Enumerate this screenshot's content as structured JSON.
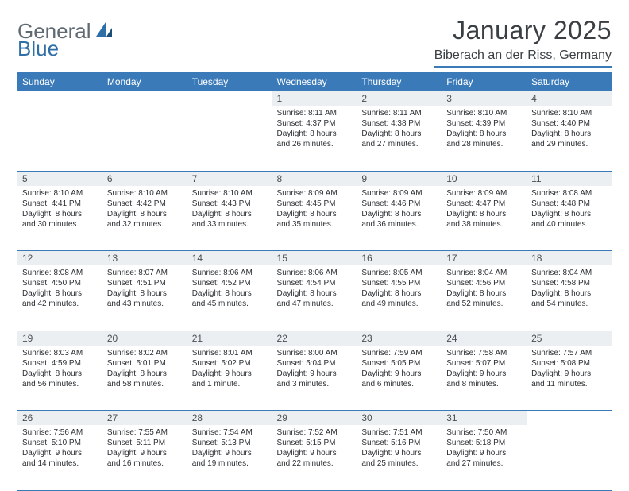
{
  "brand": {
    "first": "General",
    "second": "Blue"
  },
  "title": "January 2025",
  "location": "Biberach an der Riss, Germany",
  "columns": [
    "Sunday",
    "Monday",
    "Tuesday",
    "Wednesday",
    "Thursday",
    "Friday",
    "Saturday"
  ],
  "colors": {
    "headerBg": "#3a7ab8",
    "headerText": "#ffffff",
    "dayNumBg": "#eceff1",
    "bodyText": "#2b2f33",
    "titleText": "#3a3f44",
    "logoGray": "#606a72",
    "logoBlue": "#2f6fa7",
    "borderBlue": "#3a7ab8",
    "pageBg": "#ffffff"
  },
  "weeks": [
    [
      null,
      null,
      null,
      {
        "n": "1",
        "sr": "8:11 AM",
        "ss": "4:37 PM",
        "dlA": "8 hours",
        "dlB": "and 26 minutes."
      },
      {
        "n": "2",
        "sr": "8:11 AM",
        "ss": "4:38 PM",
        "dlA": "8 hours",
        "dlB": "and 27 minutes."
      },
      {
        "n": "3",
        "sr": "8:10 AM",
        "ss": "4:39 PM",
        "dlA": "8 hours",
        "dlB": "and 28 minutes."
      },
      {
        "n": "4",
        "sr": "8:10 AM",
        "ss": "4:40 PM",
        "dlA": "8 hours",
        "dlB": "and 29 minutes."
      }
    ],
    [
      {
        "n": "5",
        "sr": "8:10 AM",
        "ss": "4:41 PM",
        "dlA": "8 hours",
        "dlB": "and 30 minutes."
      },
      {
        "n": "6",
        "sr": "8:10 AM",
        "ss": "4:42 PM",
        "dlA": "8 hours",
        "dlB": "and 32 minutes."
      },
      {
        "n": "7",
        "sr": "8:10 AM",
        "ss": "4:43 PM",
        "dlA": "8 hours",
        "dlB": "and 33 minutes."
      },
      {
        "n": "8",
        "sr": "8:09 AM",
        "ss": "4:45 PM",
        "dlA": "8 hours",
        "dlB": "and 35 minutes."
      },
      {
        "n": "9",
        "sr": "8:09 AM",
        "ss": "4:46 PM",
        "dlA": "8 hours",
        "dlB": "and 36 minutes."
      },
      {
        "n": "10",
        "sr": "8:09 AM",
        "ss": "4:47 PM",
        "dlA": "8 hours",
        "dlB": "and 38 minutes."
      },
      {
        "n": "11",
        "sr": "8:08 AM",
        "ss": "4:48 PM",
        "dlA": "8 hours",
        "dlB": "and 40 minutes."
      }
    ],
    [
      {
        "n": "12",
        "sr": "8:08 AM",
        "ss": "4:50 PM",
        "dlA": "8 hours",
        "dlB": "and 42 minutes."
      },
      {
        "n": "13",
        "sr": "8:07 AM",
        "ss": "4:51 PM",
        "dlA": "8 hours",
        "dlB": "and 43 minutes."
      },
      {
        "n": "14",
        "sr": "8:06 AM",
        "ss": "4:52 PM",
        "dlA": "8 hours",
        "dlB": "and 45 minutes."
      },
      {
        "n": "15",
        "sr": "8:06 AM",
        "ss": "4:54 PM",
        "dlA": "8 hours",
        "dlB": "and 47 minutes."
      },
      {
        "n": "16",
        "sr": "8:05 AM",
        "ss": "4:55 PM",
        "dlA": "8 hours",
        "dlB": "and 49 minutes."
      },
      {
        "n": "17",
        "sr": "8:04 AM",
        "ss": "4:56 PM",
        "dlA": "8 hours",
        "dlB": "and 52 minutes."
      },
      {
        "n": "18",
        "sr": "8:04 AM",
        "ss": "4:58 PM",
        "dlA": "8 hours",
        "dlB": "and 54 minutes."
      }
    ],
    [
      {
        "n": "19",
        "sr": "8:03 AM",
        "ss": "4:59 PM",
        "dlA": "8 hours",
        "dlB": "and 56 minutes."
      },
      {
        "n": "20",
        "sr": "8:02 AM",
        "ss": "5:01 PM",
        "dlA": "8 hours",
        "dlB": "and 58 minutes."
      },
      {
        "n": "21",
        "sr": "8:01 AM",
        "ss": "5:02 PM",
        "dlA": "9 hours",
        "dlB": "and 1 minute."
      },
      {
        "n": "22",
        "sr": "8:00 AM",
        "ss": "5:04 PM",
        "dlA": "9 hours",
        "dlB": "and 3 minutes."
      },
      {
        "n": "23",
        "sr": "7:59 AM",
        "ss": "5:05 PM",
        "dlA": "9 hours",
        "dlB": "and 6 minutes."
      },
      {
        "n": "24",
        "sr": "7:58 AM",
        "ss": "5:07 PM",
        "dlA": "9 hours",
        "dlB": "and 8 minutes."
      },
      {
        "n": "25",
        "sr": "7:57 AM",
        "ss": "5:08 PM",
        "dlA": "9 hours",
        "dlB": "and 11 minutes."
      }
    ],
    [
      {
        "n": "26",
        "sr": "7:56 AM",
        "ss": "5:10 PM",
        "dlA": "9 hours",
        "dlB": "and 14 minutes."
      },
      {
        "n": "27",
        "sr": "7:55 AM",
        "ss": "5:11 PM",
        "dlA": "9 hours",
        "dlB": "and 16 minutes."
      },
      {
        "n": "28",
        "sr": "7:54 AM",
        "ss": "5:13 PM",
        "dlA": "9 hours",
        "dlB": "and 19 minutes."
      },
      {
        "n": "29",
        "sr": "7:52 AM",
        "ss": "5:15 PM",
        "dlA": "9 hours",
        "dlB": "and 22 minutes."
      },
      {
        "n": "30",
        "sr": "7:51 AM",
        "ss": "5:16 PM",
        "dlA": "9 hours",
        "dlB": "and 25 minutes."
      },
      {
        "n": "31",
        "sr": "7:50 AM",
        "ss": "5:18 PM",
        "dlA": "9 hours",
        "dlB": "and 27 minutes."
      },
      null
    ]
  ]
}
